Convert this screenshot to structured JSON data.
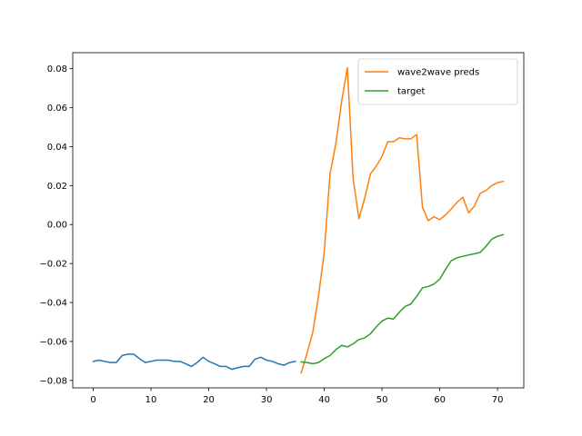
{
  "chart_data": {
    "type": "line",
    "title": "",
    "xlabel": "",
    "ylabel": "",
    "xlim": [
      -3.55,
      74.55
    ],
    "ylim": [
      -0.0838,
      0.0882
    ],
    "xticks": [
      0,
      10,
      20,
      30,
      40,
      50,
      60,
      70
    ],
    "yticks": [
      -0.08,
      -0.06,
      -0.04,
      -0.02,
      0.0,
      0.02,
      0.04,
      0.06,
      0.08
    ],
    "ytick_labels": [
      "−0.08",
      "−0.06",
      "−0.04",
      "−0.02",
      "0.00",
      "0.02",
      "0.04",
      "0.06",
      "0.08"
    ],
    "grid": false,
    "legend_position": "upper-right",
    "series": [
      {
        "color": "#1f77b4",
        "in_legend": false,
        "x": [
          0,
          1,
          2,
          3,
          4,
          5,
          6,
          7,
          8,
          9,
          10,
          11,
          12,
          13,
          14,
          15,
          16,
          17,
          18,
          19,
          20,
          21,
          22,
          23,
          24,
          25,
          26,
          27,
          28,
          29,
          30,
          31,
          32,
          33,
          34,
          35
        ],
        "y": [
          -0.0702,
          -0.0696,
          -0.0702,
          -0.0708,
          -0.0708,
          -0.0672,
          -0.0665,
          -0.0665,
          -0.0688,
          -0.0708,
          -0.0702,
          -0.0696,
          -0.0696,
          -0.0696,
          -0.0702,
          -0.0702,
          -0.0714,
          -0.0728,
          -0.0708,
          -0.0681,
          -0.0702,
          -0.0714,
          -0.0728,
          -0.0728,
          -0.0743,
          -0.0735,
          -0.0728,
          -0.0728,
          -0.0691,
          -0.0681,
          -0.0696,
          -0.0702,
          -0.0714,
          -0.0722,
          -0.0708,
          -0.0702
        ]
      },
      {
        "name": "wave2wave preds",
        "color": "#ff7f0e",
        "in_legend": true,
        "x": [
          36,
          37,
          38,
          39,
          40,
          41,
          42,
          43,
          44,
          45,
          46,
          47,
          48,
          49,
          50,
          51,
          52,
          53,
          54,
          55,
          56,
          57,
          58,
          59,
          60,
          61,
          62,
          63,
          64,
          65,
          66,
          67,
          68,
          69,
          70,
          71
        ],
        "y": [
          -0.0762,
          -0.0662,
          -0.0555,
          -0.0368,
          -0.014,
          0.026,
          0.0415,
          0.063,
          0.0805,
          0.0235,
          0.003,
          0.0135,
          0.026,
          0.03,
          0.035,
          0.0425,
          0.0425,
          0.0445,
          0.044,
          0.044,
          0.0462,
          0.009,
          0.002,
          0.004,
          0.0025,
          0.005,
          0.008,
          0.0115,
          0.014,
          0.006,
          0.0095,
          0.016,
          0.0175,
          0.02,
          0.0215,
          0.0222
        ]
      },
      {
        "name": "target",
        "color": "#2ca02c",
        "in_legend": true,
        "x": [
          36,
          37,
          38,
          39,
          40,
          41,
          42,
          43,
          44,
          45,
          46,
          47,
          48,
          49,
          50,
          51,
          52,
          53,
          54,
          55,
          56,
          57,
          58,
          59,
          60,
          61,
          62,
          63,
          64,
          65,
          66,
          67,
          68,
          69,
          70,
          71
        ],
        "y": [
          -0.0705,
          -0.0708,
          -0.0714,
          -0.0708,
          -0.0688,
          -0.0672,
          -0.0642,
          -0.062,
          -0.0628,
          -0.0612,
          -0.059,
          -0.0582,
          -0.056,
          -0.0525,
          -0.0495,
          -0.048,
          -0.0485,
          -0.045,
          -0.042,
          -0.0408,
          -0.0368,
          -0.0325,
          -0.0318,
          -0.0305,
          -0.028,
          -0.023,
          -0.0185,
          -0.017,
          -0.0163,
          -0.0156,
          -0.015,
          -0.0143,
          -0.0112,
          -0.0075,
          -0.006,
          -0.0052
        ]
      }
    ]
  }
}
